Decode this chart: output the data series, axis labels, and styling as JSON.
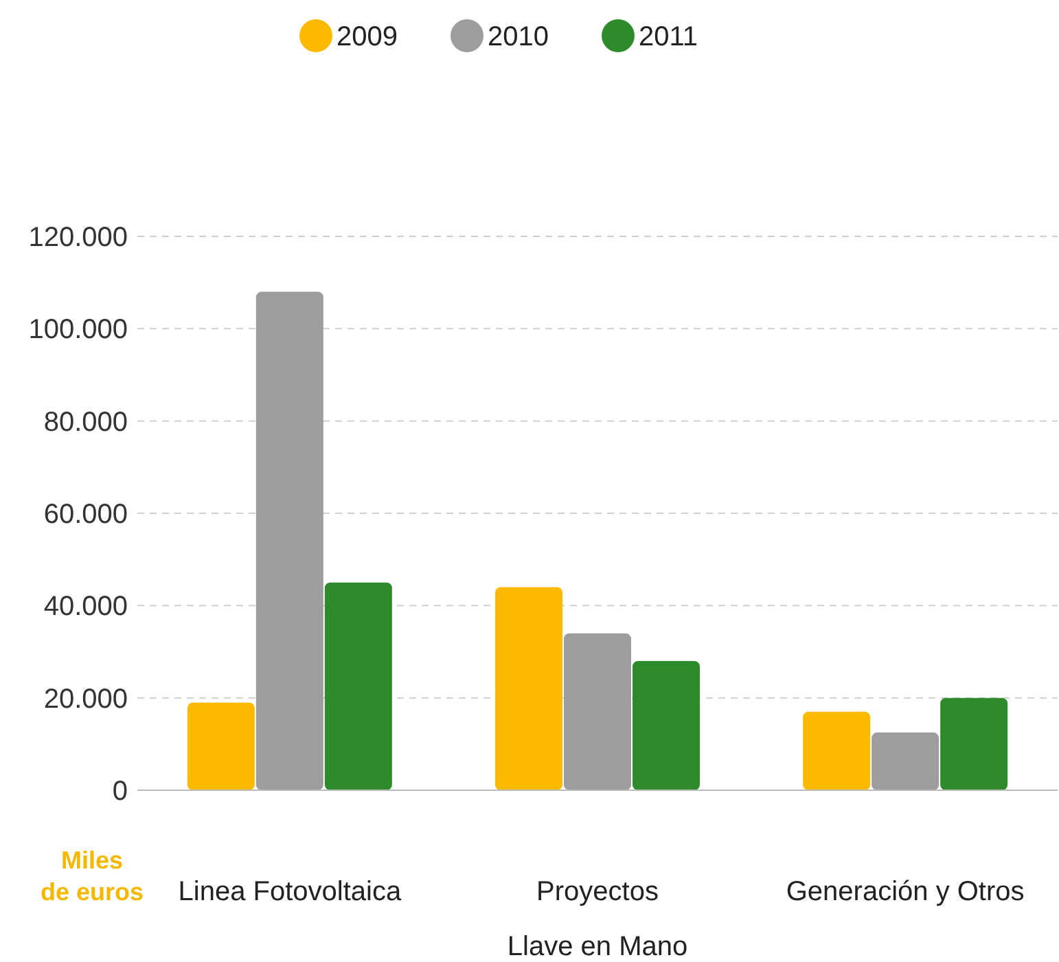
{
  "chart_data": {
    "type": "bar",
    "categories": [
      "Linea Fotovoltaica",
      "Proyectos Llave en Mano",
      "Generación y Otros"
    ],
    "series": [
      {
        "name": "2009",
        "color": "#fbb900",
        "values": [
          19000,
          44000,
          17000
        ]
      },
      {
        "name": "2010",
        "color": "#9d9d9f",
        "values": [
          108000,
          34000,
          12500
        ]
      },
      {
        "name": "2011",
        "color": "#2e8b2c",
        "values": [
          45000,
          28000,
          20000
        ]
      }
    ],
    "ylabel": "Miles de euros",
    "ylim": [
      0,
      120000
    ],
    "yticks": [
      {
        "value": 0,
        "label": "0"
      },
      {
        "value": 20000,
        "label": "20.000"
      },
      {
        "value": 40000,
        "label": "40.000"
      },
      {
        "value": 60000,
        "label": "60.000"
      },
      {
        "value": 80000,
        "label": "80.000"
      },
      {
        "value": 100000,
        "label": "100.000"
      },
      {
        "value": 120000,
        "label": "120.000"
      }
    ],
    "grid": "y",
    "legend": "top"
  }
}
